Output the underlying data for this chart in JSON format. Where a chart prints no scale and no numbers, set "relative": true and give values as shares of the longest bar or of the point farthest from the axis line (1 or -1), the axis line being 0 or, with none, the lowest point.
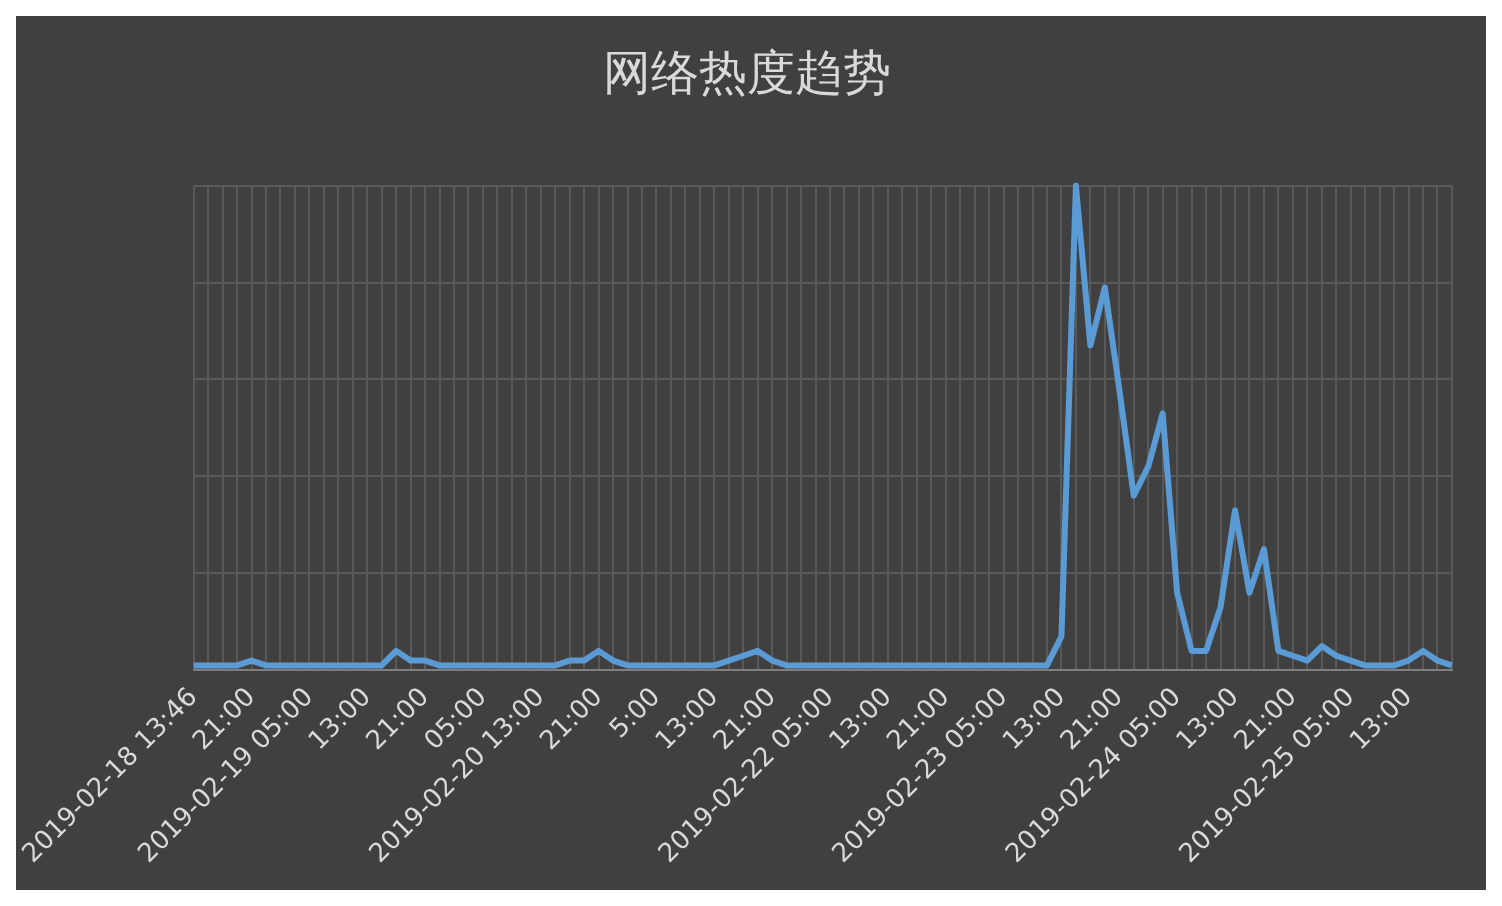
{
  "chart_data": {
    "type": "line",
    "title": "网络热度趋势",
    "relative": true,
    "grid": true,
    "legend": false,
    "marker": "none",
    "line_style": "solid",
    "categories": [
      "2019-02-18 13:46",
      null,
      null,
      null,
      "21:00",
      null,
      null,
      null,
      "2019-02-19 05:00",
      null,
      null,
      null,
      "13:00",
      null,
      null,
      null,
      "21:00",
      null,
      null,
      null,
      "05:00",
      null,
      null,
      null,
      "2019-02-20 13:00",
      null,
      null,
      null,
      "21:00",
      null,
      null,
      null,
      "5:00",
      null,
      null,
      null,
      "13:00",
      null,
      null,
      null,
      "21:00",
      null,
      null,
      null,
      "2019-02-22 05:00",
      null,
      null,
      null,
      "13:00",
      null,
      null,
      null,
      "21:00",
      null,
      null,
      null,
      "2019-02-23 05:00",
      null,
      null,
      null,
      "13:00",
      null,
      null,
      null,
      "21:00",
      null,
      null,
      null,
      "2019-02-24 05:00",
      null,
      null,
      null,
      "13:00",
      null,
      null,
      null,
      "21:00",
      null,
      null,
      null,
      "2019-02-25 05:00",
      null,
      null,
      null,
      "13:00",
      null,
      null,
      null
    ],
    "series": [
      {
        "color": "#5b9bd5",
        "values": [
          0.01,
          0.01,
          0.01,
          0.01,
          0.02,
          0.01,
          0.01,
          0.01,
          0.01,
          0.01,
          0.01,
          0.01,
          0.01,
          0.01,
          0.04,
          0.02,
          0.02,
          0.01,
          0.01,
          0.01,
          0.01,
          0.01,
          0.01,
          0.01,
          0.01,
          0.01,
          0.02,
          0.02,
          0.04,
          0.02,
          0.01,
          0.01,
          0.01,
          0.01,
          0.01,
          0.01,
          0.01,
          0.02,
          0.03,
          0.04,
          0.02,
          0.01,
          0.01,
          0.01,
          0.01,
          0.01,
          0.01,
          0.01,
          0.01,
          0.01,
          0.01,
          0.01,
          0.01,
          0.01,
          0.01,
          0.01,
          0.01,
          0.01,
          0.01,
          0.01,
          0.07,
          1,
          0.67,
          0.79,
          0.58,
          0.36,
          0.42,
          0.53,
          0.16,
          0.04,
          0.04,
          0.13,
          0.33,
          0.16,
          0.25,
          0.04,
          0.03,
          0.02,
          0.05,
          0.03,
          0.02,
          0.01,
          0.01,
          0.01,
          0.02,
          0.04,
          0.02,
          0.01
        ]
      }
    ]
  }
}
